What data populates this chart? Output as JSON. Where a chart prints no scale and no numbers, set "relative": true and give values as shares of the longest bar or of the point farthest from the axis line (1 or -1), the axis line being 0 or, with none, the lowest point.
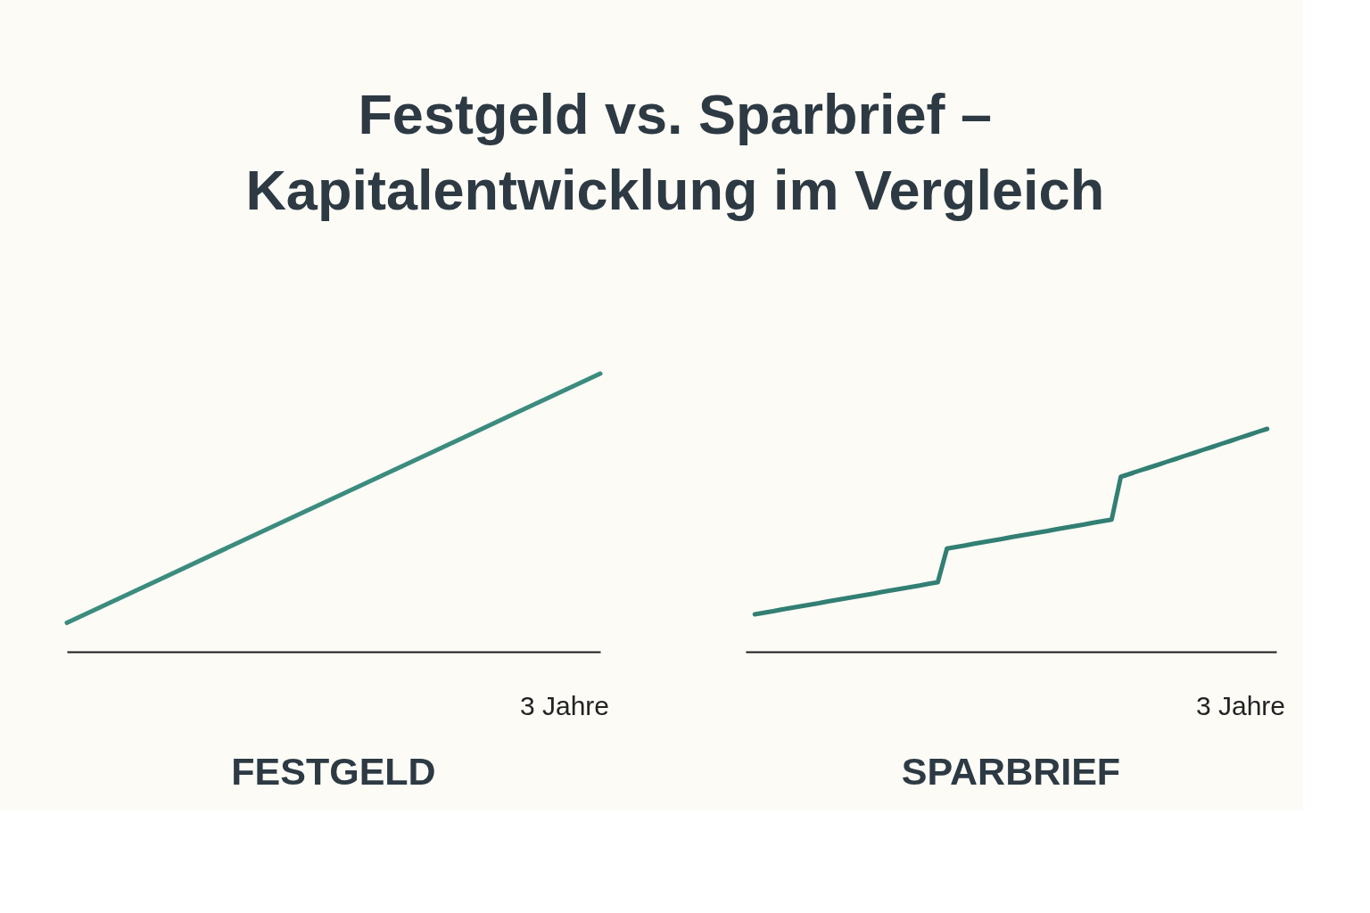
{
  "chart_data": [
    {
      "type": "other",
      "title": "Festgeld vs. Sparbrief –\nKapitalentwicklung im Vergleich"
    },
    {
      "type": "line",
      "title": "FESTGELD",
      "relative": true,
      "categories": [
        null,
        null,
        null,
        null,
        null,
        null,
        null
      ],
      "values": [
        0.104,
        0.253,
        0.403,
        0.552,
        0.701,
        0.851,
        1
      ],
      "color": "#3b8c7e",
      "annotations": [
        "3 Jahre"
      ]
    },
    {
      "type": "line",
      "title": "SPARBRIEF",
      "relative": true,
      "categories": [
        null,
        null,
        null,
        null,
        null,
        null,
        null,
        null,
        null,
        null,
        null,
        null,
        null,
        null,
        null,
        null,
        null,
        null,
        null,
        null,
        null,
        null,
        null,
        null,
        null,
        null,
        null,
        null,
        null,
        null,
        null,
        null,
        null,
        null,
        null,
        null,
        null,
        null,
        null,
        null,
        null,
        null,
        null,
        null,
        null,
        null,
        null,
        null,
        null,
        null,
        null,
        null,
        null,
        null,
        null,
        null,
        null
      ],
      "values": [
        0.168,
        0.175,
        0.182,
        0.19,
        0.197,
        0.204,
        0.211,
        0.218,
        0.226,
        0.233,
        0.24,
        0.247,
        0.254,
        0.261,
        0.269,
        0.276,
        0.283,
        0.29,
        0.297,
        0.305,
        0.312,
        0.463,
        0.47,
        0.477,
        0.485,
        0.492,
        0.499,
        0.506,
        0.514,
        0.521,
        0.528,
        0.535,
        0.542,
        0.55,
        0.557,
        0.564,
        0.571,
        0.579,
        0.586,
        0.593,
        0.785,
        0.798,
        0.812,
        0.825,
        0.838,
        0.852,
        0.865,
        0.879,
        0.892,
        0.906,
        0.919,
        0.933,
        0.946,
        0.96,
        0.973,
        0.987,
        1
      ],
      "color": "#327f73",
      "annotations": [
        "3 Jahre"
      ]
    }
  ]
}
